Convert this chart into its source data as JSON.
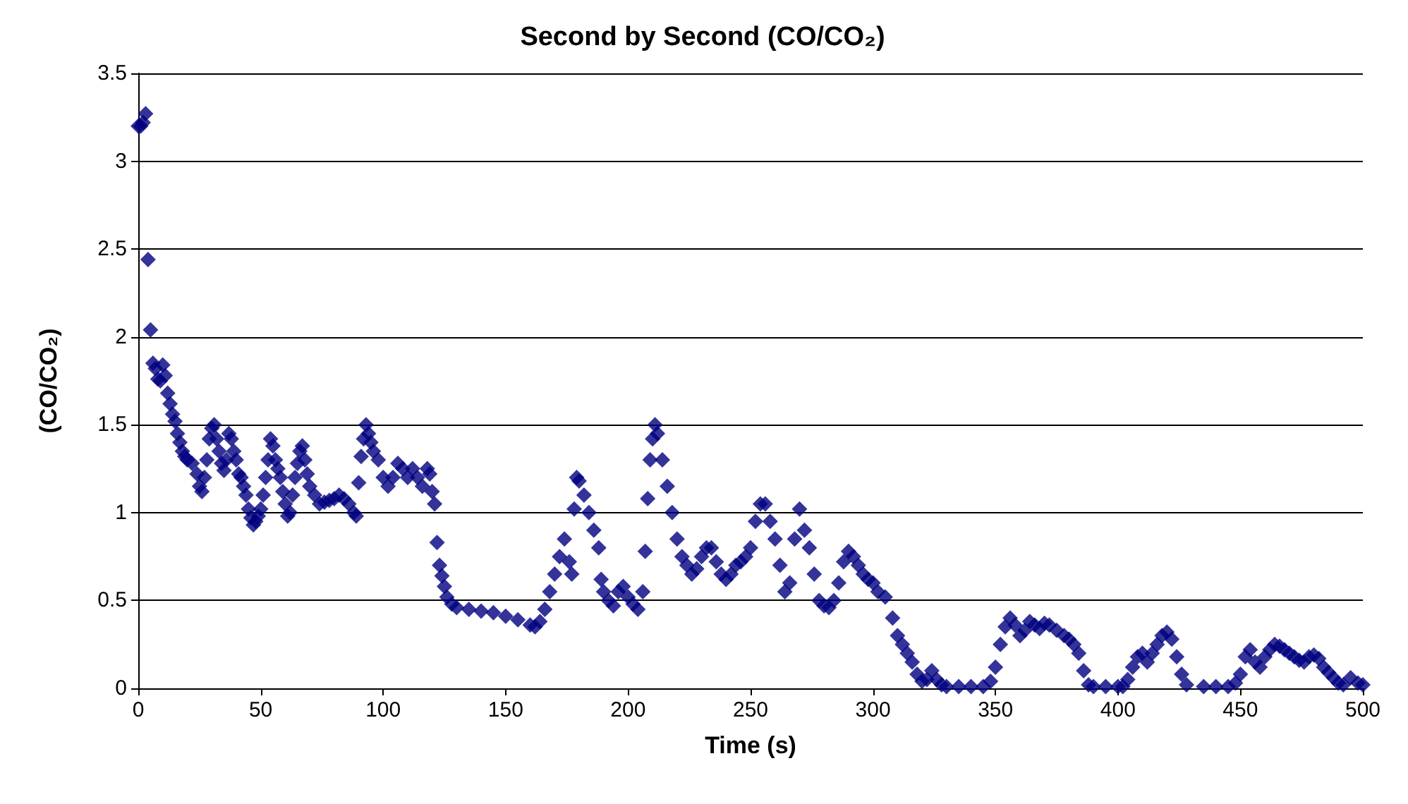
{
  "chart_data": {
    "type": "scatter",
    "title": "Second by Second (CO/CO₂)",
    "xlabel": "Time (s)",
    "ylabel": "(CO/CO₂)",
    "x": [
      0,
      1,
      2,
      3,
      4,
      5,
      6,
      7,
      8,
      9,
      10,
      11,
      12,
      13,
      14,
      15,
      16,
      17,
      18,
      19,
      20,
      22,
      24,
      25,
      26,
      27,
      28,
      29,
      30,
      31,
      32,
      33,
      34,
      35,
      36,
      37,
      38,
      39,
      40,
      41,
      42,
      43,
      44,
      45,
      46,
      47,
      48,
      49,
      50,
      51,
      52,
      53,
      54,
      55,
      56,
      57,
      58,
      59,
      60,
      61,
      62,
      63,
      64,
      65,
      66,
      67,
      68,
      69,
      70,
      72,
      74,
      76,
      78,
      80,
      82,
      84,
      86,
      88,
      89,
      90,
      91,
      92,
      93,
      94,
      95,
      96,
      98,
      100,
      102,
      104,
      106,
      108,
      110,
      112,
      114,
      116,
      118,
      119,
      120,
      121,
      122,
      123,
      124,
      125,
      126,
      128,
      130,
      135,
      140,
      145,
      150,
      155,
      160,
      162,
      164,
      166,
      168,
      170,
      172,
      174,
      176,
      177,
      178,
      179,
      180,
      182,
      184,
      186,
      188,
      189,
      190,
      192,
      194,
      196,
      198,
      200,
      202,
      204,
      206,
      207,
      208,
      209,
      210,
      211,
      212,
      214,
      216,
      218,
      220,
      222,
      224,
      226,
      228,
      230,
      232,
      234,
      236,
      238,
      240,
      242,
      244,
      246,
      248,
      250,
      252,
      254,
      256,
      258,
      260,
      262,
      264,
      266,
      268,
      270,
      272,
      274,
      276,
      278,
      280,
      282,
      284,
      286,
      288,
      290,
      292,
      294,
      296,
      298,
      300,
      302,
      305,
      308,
      310,
      312,
      314,
      316,
      318,
      320,
      322,
      324,
      326,
      328,
      330,
      335,
      340,
      345,
      348,
      350,
      352,
      354,
      356,
      358,
      360,
      362,
      364,
      366,
      368,
      370,
      372,
      375,
      378,
      380,
      382,
      384,
      386,
      388,
      390,
      395,
      400,
      402,
      404,
      406,
      408,
      410,
      412,
      414,
      416,
      418,
      420,
      422,
      424,
      426,
      428,
      435,
      440,
      445,
      448,
      450,
      452,
      454,
      456,
      458,
      460,
      462,
      464,
      466,
      468,
      470,
      472,
      474,
      476,
      478,
      480,
      482,
      484,
      486,
      488,
      490,
      492,
      495,
      498,
      500
    ],
    "series": [
      {
        "color": "#000080",
        "values": [
          3.2,
          3.2,
          3.22,
          3.27,
          2.44,
          2.04,
          1.85,
          1.82,
          1.76,
          1.75,
          1.84,
          1.78,
          1.68,
          1.62,
          1.56,
          1.52,
          1.45,
          1.4,
          1.35,
          1.32,
          1.3,
          1.28,
          1.22,
          1.15,
          1.12,
          1.2,
          1.3,
          1.42,
          1.48,
          1.5,
          1.42,
          1.35,
          1.28,
          1.24,
          1.3,
          1.45,
          1.42,
          1.35,
          1.3,
          1.22,
          1.2,
          1.15,
          1.1,
          1.02,
          0.97,
          0.93,
          0.95,
          0.98,
          1.02,
          1.1,
          1.2,
          1.3,
          1.42,
          1.38,
          1.3,
          1.25,
          1.2,
          1.12,
          1.05,
          0.98,
          1.0,
          1.1,
          1.2,
          1.28,
          1.35,
          1.38,
          1.3,
          1.22,
          1.15,
          1.1,
          1.05,
          1.06,
          1.07,
          1.08,
          1.1,
          1.08,
          1.05,
          1.0,
          0.98,
          1.17,
          1.32,
          1.42,
          1.5,
          1.45,
          1.4,
          1.35,
          1.3,
          1.2,
          1.15,
          1.2,
          1.28,
          1.25,
          1.2,
          1.25,
          1.2,
          1.15,
          1.25,
          1.22,
          1.12,
          1.05,
          0.83,
          0.7,
          0.64,
          0.58,
          0.52,
          0.48,
          0.46,
          0.45,
          0.44,
          0.43,
          0.41,
          0.39,
          0.36,
          0.35,
          0.38,
          0.45,
          0.55,
          0.65,
          0.75,
          0.85,
          0.72,
          0.65,
          1.02,
          1.2,
          1.18,
          1.1,
          1.0,
          0.9,
          0.8,
          0.62,
          0.55,
          0.5,
          0.47,
          0.55,
          0.58,
          0.52,
          0.48,
          0.45,
          0.55,
          0.78,
          1.08,
          1.3,
          1.42,
          1.5,
          1.45,
          1.3,
          1.15,
          1.0,
          0.85,
          0.75,
          0.7,
          0.65,
          0.68,
          0.75,
          0.8,
          0.8,
          0.72,
          0.65,
          0.62,
          0.65,
          0.7,
          0.72,
          0.75,
          0.8,
          0.95,
          1.05,
          1.05,
          0.95,
          0.85,
          0.7,
          0.55,
          0.6,
          0.85,
          1.02,
          0.9,
          0.8,
          0.65,
          0.5,
          0.47,
          0.46,
          0.5,
          0.6,
          0.72,
          0.78,
          0.75,
          0.7,
          0.65,
          0.62,
          0.6,
          0.55,
          0.52,
          0.4,
          0.3,
          0.25,
          0.2,
          0.15,
          0.08,
          0.04,
          0.05,
          0.1,
          0.05,
          0.02,
          0.01,
          0.01,
          0.01,
          0.01,
          0.04,
          0.12,
          0.25,
          0.35,
          0.4,
          0.36,
          0.3,
          0.33,
          0.38,
          0.36,
          0.34,
          0.37,
          0.36,
          0.33,
          0.3,
          0.28,
          0.25,
          0.2,
          0.1,
          0.02,
          0.01,
          0.01,
          0.01,
          0.01,
          0.05,
          0.12,
          0.18,
          0.2,
          0.15,
          0.2,
          0.25,
          0.3,
          0.32,
          0.28,
          0.18,
          0.08,
          0.02,
          0.01,
          0.01,
          0.01,
          0.03,
          0.08,
          0.18,
          0.22,
          0.15,
          0.12,
          0.18,
          0.22,
          0.25,
          0.24,
          0.22,
          0.2,
          0.18,
          0.16,
          0.15,
          0.18,
          0.19,
          0.17,
          0.12,
          0.09,
          0.06,
          0.03,
          0.02,
          0.06,
          0.03,
          0.02
        ]
      }
    ],
    "xlim": [
      0,
      500
    ],
    "xticks": [
      0,
      50,
      100,
      150,
      200,
      250,
      300,
      350,
      400,
      450,
      500
    ],
    "ylim": [
      0,
      3.5
    ],
    "yticks": [
      0,
      0.5,
      1,
      1.5,
      2,
      2.5,
      3,
      3.5
    ],
    "grid": "y",
    "marker": "diamond"
  }
}
